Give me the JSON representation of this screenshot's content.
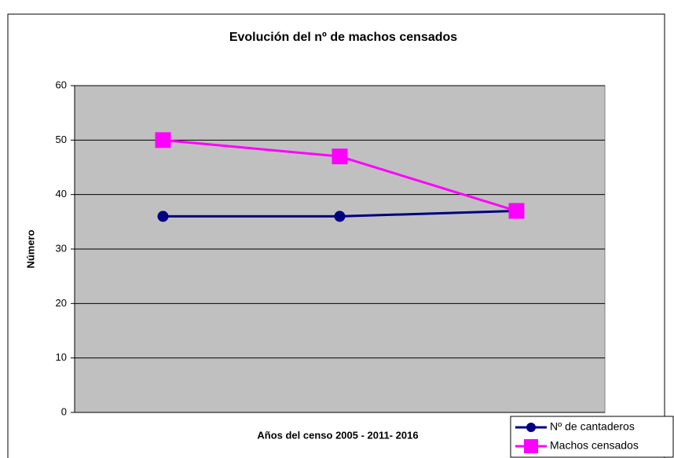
{
  "chart_data": {
    "type": "line",
    "title": "Evolución del nº de machos censados",
    "x_label": "Años del censo 2005 - 2011- 2016",
    "y_label": "Número",
    "categories": [
      null,
      null,
      null
    ],
    "series": [
      {
        "name": "Nº de cantaderos",
        "color": "#000080",
        "marker": "circle",
        "values": [
          36,
          36,
          37
        ]
      },
      {
        "name": "Machos censados",
        "color": "#ff00ff",
        "marker": "square",
        "values": [
          50,
          47,
          37
        ]
      }
    ],
    "ylim": [
      0,
      60
    ],
    "yticks": [
      0,
      10,
      20,
      30,
      40,
      50,
      60
    ],
    "grid": true,
    "plot_background": "#c0c0c0",
    "legend": "bottom-right"
  }
}
